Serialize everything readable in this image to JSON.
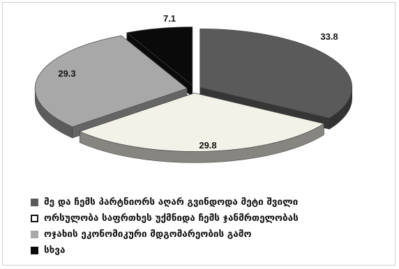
{
  "chart_data": {
    "type": "pie",
    "style": "3d-exploded",
    "series": [
      {
        "name": "მე და ჩემს პარტნიორს აღარ გვინდოდა მეტი შვილი",
        "value": 33.8,
        "label": "33.8",
        "color": "#5a5a5a"
      },
      {
        "name": "ორსულობა საფრთხეს უქმნიდა ჩემს ჯანმრთელობას",
        "value": 29.8,
        "label": "29.8",
        "color": "#f3f2e9"
      },
      {
        "name": "ოჯახის ეკონომიკური მდგომარეობის გამო",
        "value": 29.3,
        "label": "29.3",
        "color": "#a8a8a8"
      },
      {
        "name": "სხვა",
        "value": 7.1,
        "label": "7.1",
        "color": "#0a0a0a"
      }
    ],
    "legend_position": "bottom-left"
  }
}
